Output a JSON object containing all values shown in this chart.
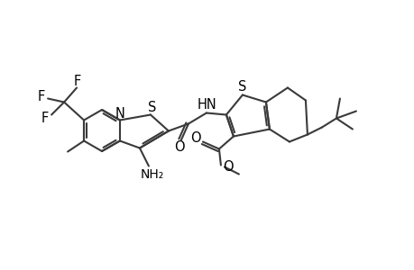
{
  "bg_color": "#ffffff",
  "line_color": "#3a3a3a",
  "text_color": "#000000",
  "lw": 1.5,
  "fs": 10.5
}
